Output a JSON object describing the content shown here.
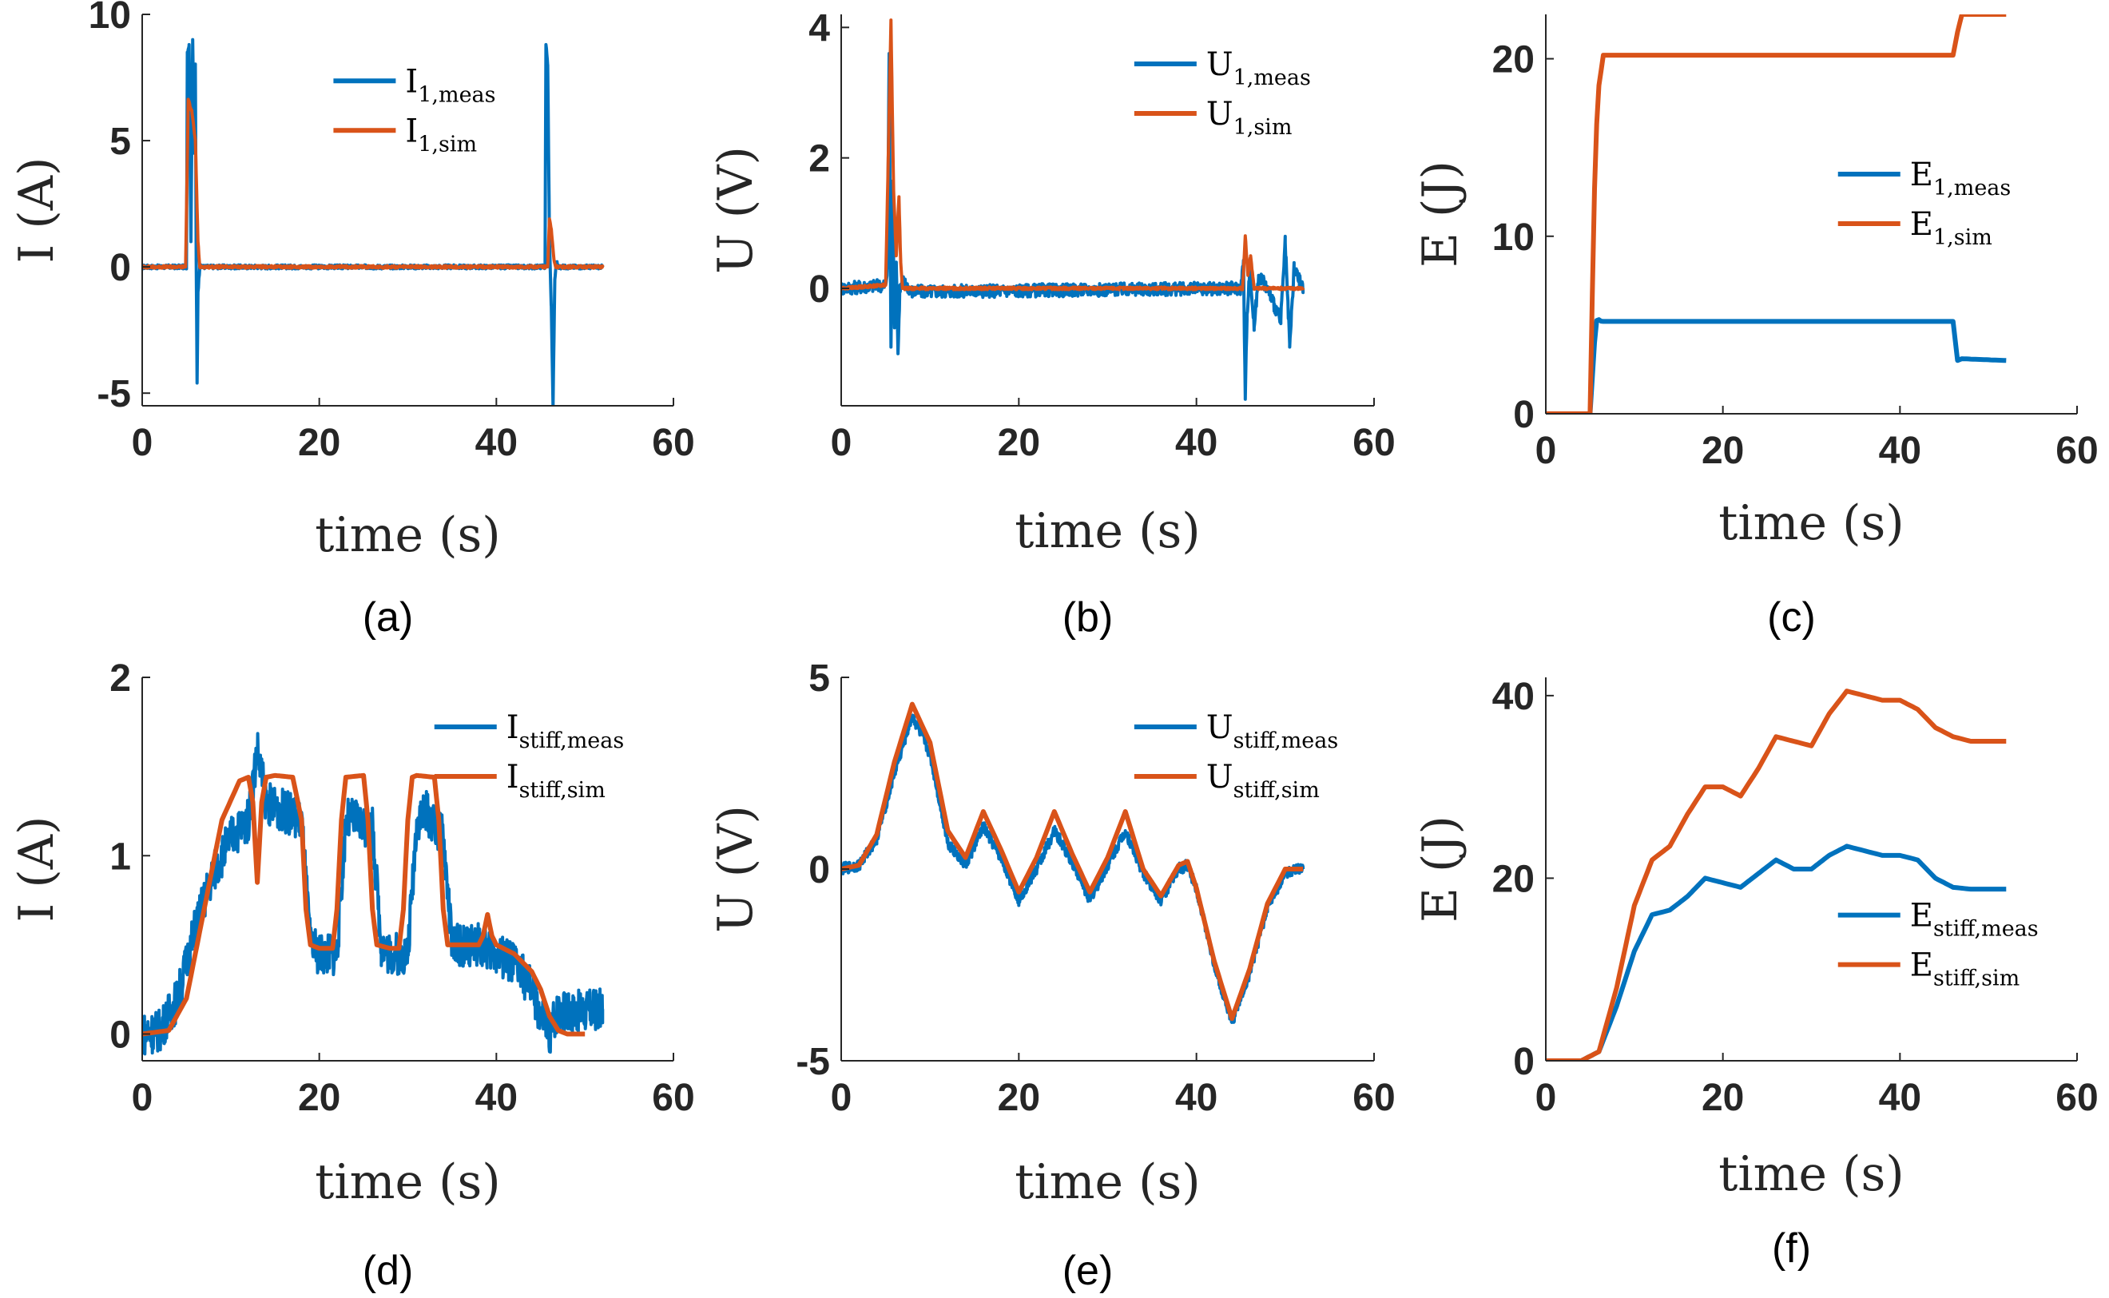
{
  "colors": {
    "meas": "#0072BD",
    "sim": "#D95319",
    "axis": "#262626"
  },
  "chart_data": [
    {
      "id": "a",
      "type": "line",
      "caption": "(a)",
      "xlabel": "time (s)",
      "ylabel": "I (A)",
      "xlim": [
        0,
        60
      ],
      "ylim": [
        -5.5,
        10
      ],
      "xticks": [
        0,
        20,
        40,
        60
      ],
      "xtick_labels": [
        "0",
        "20",
        "40",
        "60"
      ],
      "yticks": [
        -5,
        0,
        5,
        10
      ],
      "ytick_labels": [
        "-5",
        "0",
        "5",
        "10"
      ],
      "legend_loc": "top-center",
      "series": [
        {
          "name": "I1,meas",
          "label_main": "I",
          "label_sub": "1,meas",
          "color_key": "meas",
          "noise": 0.08,
          "x": [
            0,
            5.0,
            5.1,
            5.3,
            5.5,
            5.7,
            5.9,
            6.0,
            6.1,
            6.2,
            6.3,
            6.5,
            7,
            45.5,
            45.6,
            45.8,
            46.0,
            46.2,
            46.4,
            46.5,
            46.6,
            46.8,
            47,
            52
          ],
          "y": [
            0,
            0,
            8.5,
            8.8,
            1.0,
            9.0,
            4.5,
            8.0,
            0.3,
            -4.6,
            -1.0,
            0,
            0,
            0,
            8.8,
            8.0,
            1.0,
            -1.5,
            -5.5,
            -3.0,
            -0.5,
            0.2,
            0,
            0
          ]
        },
        {
          "name": "I1,sim",
          "label_main": "I",
          "label_sub": "1,sim",
          "color_key": "sim",
          "noise": 0.05,
          "x": [
            0,
            4.9,
            5.2,
            5.6,
            6.0,
            6.3,
            6.5,
            7,
            45.8,
            46.0,
            46.2,
            46.5,
            46.7,
            52
          ],
          "y": [
            0,
            0,
            6.6,
            6.2,
            5.0,
            1.0,
            0,
            0,
            0,
            1.9,
            1.5,
            0.3,
            0,
            0
          ]
        }
      ]
    },
    {
      "id": "b",
      "type": "line",
      "caption": "(b)",
      "xlabel": "time (s)",
      "ylabel": "U (V)",
      "xlim": [
        0,
        60
      ],
      "ylim": [
        -1.8,
        4.2
      ],
      "xticks": [
        0,
        20,
        40,
        60
      ],
      "xtick_labels": [
        "0",
        "20",
        "40",
        "60"
      ],
      "yticks": [
        0,
        2,
        4
      ],
      "ytick_labels": [
        "0",
        "2",
        "4"
      ],
      "legend_loc": "top-right",
      "series": [
        {
          "name": "U1,meas",
          "label_main": "U",
          "label_sub": "1,meas",
          "color_key": "meas",
          "noise": 0.1,
          "x": [
            0,
            5.0,
            5.2,
            5.4,
            5.6,
            5.8,
            6.0,
            6.2,
            6.4,
            6.6,
            7.0,
            8,
            45.0,
            45.3,
            45.5,
            45.7,
            46.0,
            46.5,
            47,
            48,
            49.5,
            50,
            50.5,
            51,
            52
          ],
          "y": [
            0,
            0.05,
            0.3,
            3.6,
            -0.9,
            1.6,
            -0.6,
            0.4,
            -1.0,
            0,
            0.1,
            -0.05,
            0,
            0.4,
            -1.7,
            -0.4,
            0.3,
            -0.6,
            0.2,
            0,
            -0.5,
            0.7,
            -0.9,
            0.3,
            0
          ]
        },
        {
          "name": "U1,sim",
          "label_main": "U",
          "label_sub": "1,sim",
          "color_key": "sim",
          "noise": 0.02,
          "x": [
            0,
            5.0,
            5.3,
            5.6,
            5.9,
            6.2,
            6.5,
            6.7,
            6.9,
            7.2,
            45.2,
            45.5,
            45.8,
            46.1,
            46.5,
            52
          ],
          "y": [
            0,
            0.05,
            2.0,
            4.1,
            1.5,
            0.5,
            1.4,
            0.4,
            0,
            0,
            0,
            0.8,
            0.2,
            0.5,
            0,
            0
          ]
        }
      ]
    },
    {
      "id": "c",
      "type": "line",
      "caption": "(c)",
      "xlabel": "time (s)",
      "ylabel": "E (J)",
      "xlim": [
        0,
        60
      ],
      "ylim": [
        0,
        22.5
      ],
      "xticks": [
        0,
        20,
        40,
        60
      ],
      "xtick_labels": [
        "0",
        "20",
        "40",
        "60"
      ],
      "yticks": [
        0,
        10,
        20
      ],
      "ytick_labels": [
        "0",
        "10",
        "20"
      ],
      "legend_loc": "center-right",
      "series": [
        {
          "name": "E1,meas",
          "label_main": "E",
          "label_sub": "1,meas",
          "color_key": "meas",
          "noise": 0,
          "x": [
            0,
            5.0,
            5.5,
            5.8,
            6.0,
            6.3,
            7,
            46,
            46.5,
            47,
            52
          ],
          "y": [
            0,
            0,
            4.0,
            5.5,
            5.3,
            5.2,
            5.2,
            5.2,
            3.0,
            3.1,
            3.0
          ]
        },
        {
          "name": "E1,sim",
          "label_main": "E",
          "label_sub": "1,sim",
          "color_key": "sim",
          "noise": 0,
          "x": [
            0,
            5.0,
            5.3,
            5.6,
            6.0,
            6.5,
            7,
            46,
            46.5,
            47,
            52
          ],
          "y": [
            0,
            0,
            8,
            15,
            18.5,
            20.2,
            20.2,
            20.2,
            21.5,
            22.5,
            22.5
          ]
        }
      ]
    },
    {
      "id": "d",
      "type": "line",
      "caption": "(d)",
      "xlabel": "time (s)",
      "ylabel": "I (A)",
      "xlim": [
        0,
        60
      ],
      "ylim": [
        -0.15,
        2
      ],
      "xticks": [
        0,
        20,
        40,
        60
      ],
      "xtick_labels": [
        "0",
        "20",
        "40",
        "60"
      ],
      "yticks": [
        0,
        1,
        2
      ],
      "ytick_labels": [
        "0",
        "1",
        "2"
      ],
      "legend_loc": "top-right",
      "series": [
        {
          "name": "Istiff,meas",
          "label_main": "I",
          "label_sub": "stiff,meas",
          "color_key": "meas",
          "noise": 0.12,
          "x": [
            0,
            2,
            4,
            6,
            8,
            10,
            12,
            13,
            14,
            16,
            18,
            19,
            20,
            22,
            23,
            24,
            26,
            27,
            28,
            30,
            31,
            32,
            34,
            35,
            36,
            38,
            40,
            42,
            44,
            45,
            46,
            47,
            48,
            50,
            52
          ],
          "y": [
            0,
            0.02,
            0.2,
            0.6,
            0.9,
            1.1,
            1.2,
            1.6,
            1.3,
            1.25,
            1.2,
            0.5,
            0.45,
            0.45,
            1.2,
            1.2,
            1.15,
            0.5,
            0.45,
            0.45,
            1.2,
            1.25,
            1.1,
            0.5,
            0.5,
            0.5,
            0.45,
            0.4,
            0.25,
            0.1,
            0.0,
            0.15,
            0.12,
            0.13,
            0.14
          ]
        },
        {
          "name": "Istiff,sim",
          "label_main": "I",
          "label_sub": "stiff,sim",
          "color_key": "sim",
          "noise": 0,
          "x": [
            0,
            3,
            5,
            7,
            9,
            11,
            12,
            12.5,
            13,
            13.5,
            14,
            15,
            17,
            18,
            18.5,
            19,
            20,
            21.5,
            22,
            22.5,
            23,
            25,
            25.5,
            26,
            26.5,
            28,
            29,
            29.5,
            30,
            30.5,
            31,
            33,
            33.5,
            34,
            34.5,
            36,
            38,
            38.5,
            39,
            39.5,
            40,
            42,
            44,
            45,
            46,
            47,
            48,
            50
          ],
          "y": [
            0,
            0.02,
            0.2,
            0.7,
            1.2,
            1.42,
            1.44,
            1.3,
            0.85,
            1.3,
            1.44,
            1.45,
            1.44,
            1.2,
            0.7,
            0.5,
            0.48,
            0.48,
            0.7,
            1.2,
            1.44,
            1.45,
            1.2,
            0.7,
            0.5,
            0.48,
            0.48,
            0.7,
            1.2,
            1.44,
            1.45,
            1.44,
            1.2,
            0.7,
            0.5,
            0.5,
            0.5,
            0.55,
            0.67,
            0.55,
            0.5,
            0.45,
            0.35,
            0.25,
            0.1,
            0.02,
            0,
            0
          ]
        }
      ]
    },
    {
      "id": "e",
      "type": "line",
      "caption": "(e)",
      "xlabel": "time (s)",
      "ylabel": "U (V)",
      "xlim": [
        0,
        60
      ],
      "ylim": [
        -5,
        5
      ],
      "xticks": [
        0,
        20,
        40,
        60
      ],
      "xtick_labels": [
        "0",
        "20",
        "40",
        "60"
      ],
      "yticks": [
        -5,
        0,
        5
      ],
      "ytick_labels": [
        "-5",
        "0",
        "5"
      ],
      "legend_loc": "top-right",
      "series": [
        {
          "name": "Ustiff,meas",
          "label_main": "U",
          "label_sub": "stiff,meas",
          "color_key": "meas",
          "noise": 0.15,
          "x": [
            0,
            2,
            4,
            6,
            8,
            10,
            12,
            14,
            16,
            18,
            20,
            22,
            24,
            26,
            28,
            30,
            32,
            34,
            36,
            38,
            39,
            40,
            42,
            44,
            46,
            48,
            50,
            52
          ],
          "y": [
            0,
            0.1,
            0.8,
            2.5,
            4.0,
            3.0,
            0.7,
            0.1,
            1.1,
            0.3,
            -0.8,
            0.0,
            1.0,
            0.2,
            -0.8,
            0.1,
            1.0,
            -0.1,
            -0.8,
            0.0,
            0.1,
            -0.5,
            -2.5,
            -4.0,
            -2.7,
            -1.0,
            -0.1,
            0
          ]
        },
        {
          "name": "Ustiff,sim",
          "label_main": "U",
          "label_sub": "stiff,sim",
          "color_key": "sim",
          "noise": 0,
          "x": [
            0,
            2,
            4,
            6,
            8,
            10,
            12,
            14,
            16,
            18,
            20,
            22,
            24,
            26,
            28,
            30,
            32,
            34,
            36,
            38,
            39,
            40,
            42,
            44,
            46,
            48,
            50,
            52
          ],
          "y": [
            0,
            0.1,
            0.9,
            2.8,
            4.3,
            3.3,
            1.0,
            0.3,
            1.5,
            0.5,
            -0.6,
            0.3,
            1.5,
            0.4,
            -0.6,
            0.3,
            1.5,
            0.0,
            -0.7,
            0.1,
            0.2,
            -0.5,
            -2.4,
            -3.9,
            -2.6,
            -0.9,
            0,
            0
          ]
        }
      ]
    },
    {
      "id": "f",
      "type": "line",
      "caption": "(f)",
      "xlabel": "time (s)",
      "ylabel": "E (J)",
      "xlim": [
        0,
        60
      ],
      "ylim": [
        0,
        42
      ],
      "xticks": [
        0,
        20,
        40,
        60
      ],
      "xtick_labels": [
        "0",
        "20",
        "40",
        "60"
      ],
      "yticks": [
        0,
        20,
        40
      ],
      "ytick_labels": [
        "0",
        "20",
        "40"
      ],
      "legend_loc": "bottom-right",
      "series": [
        {
          "name": "Estiff,meas",
          "label_main": "E",
          "label_sub": "stiff,meas",
          "color_key": "meas",
          "noise": 0,
          "x": [
            0,
            4,
            6,
            8,
            10,
            12,
            14,
            16,
            18,
            20,
            22,
            24,
            26,
            28,
            30,
            32,
            34,
            36,
            38,
            40,
            42,
            44,
            46,
            48,
            50,
            52
          ],
          "y": [
            0,
            0,
            1,
            6,
            12,
            16,
            16.5,
            18,
            20,
            19.5,
            19,
            20.5,
            22,
            21,
            21,
            22.5,
            23.5,
            23,
            22.5,
            22.5,
            22,
            20,
            19,
            18.8,
            18.8,
            18.8
          ]
        },
        {
          "name": "Estiff,sim",
          "label_main": "E",
          "label_sub": "stiff,sim",
          "color_key": "sim",
          "noise": 0,
          "x": [
            0,
            4,
            6,
            8,
            10,
            12,
            14,
            16,
            18,
            20,
            22,
            24,
            26,
            28,
            30,
            32,
            34,
            36,
            38,
            40,
            42,
            44,
            46,
            48,
            50,
            52
          ],
          "y": [
            0,
            0,
            1,
            8,
            17,
            22,
            23.5,
            27,
            30,
            30,
            29,
            32,
            35.5,
            35,
            34.5,
            38,
            40.5,
            40,
            39.5,
            39.5,
            38.5,
            36.5,
            35.5,
            35,
            35,
            35
          ]
        }
      ]
    }
  ]
}
